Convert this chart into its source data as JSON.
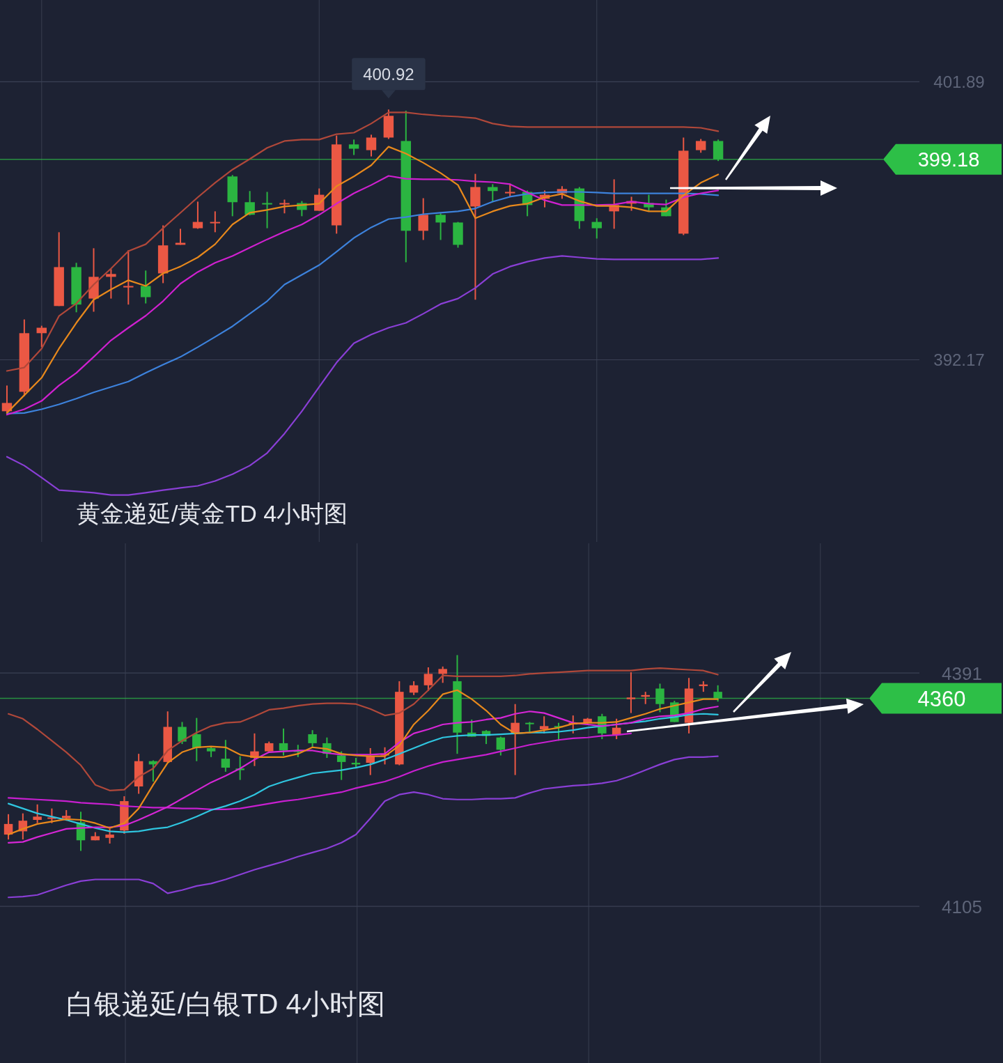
{
  "chart_data": [
    {
      "type": "candlestick",
      "title": "黄金递延/黄金TD 4小时图",
      "categories": [
        null,
        null,
        null,
        null,
        null,
        null,
        null,
        null,
        null,
        null,
        null,
        null,
        null,
        null,
        null,
        null,
        null,
        null,
        null,
        null,
        null,
        null,
        null,
        null,
        null,
        null,
        null,
        null,
        null,
        null,
        null,
        null,
        null,
        null,
        null,
        null,
        null,
        null,
        null,
        null,
        null,
        null
      ],
      "ohlc": [
        [
          390.37,
          391.27,
          390.32,
          390.66
        ],
        [
          391.05,
          393.58,
          390.9,
          393.1
        ],
        [
          393.1,
          393.36,
          392.61,
          393.29
        ],
        [
          394.05,
          396.63,
          394.05,
          395.41
        ],
        [
          395.41,
          395.56,
          393.83,
          394.1
        ],
        [
          394.31,
          396.07,
          393.85,
          395.07
        ],
        [
          395.07,
          395.34,
          394.31,
          395.17
        ],
        [
          394.7,
          396.0,
          394.1,
          394.75
        ],
        [
          394.75,
          395.29,
          394.14,
          394.36
        ],
        [
          395.19,
          396.87,
          394.85,
          396.17
        ],
        [
          396.19,
          396.75,
          396.19,
          396.26
        ],
        [
          396.77,
          397.7,
          396.75,
          396.99
        ],
        [
          396.95,
          397.36,
          396.63,
          396.99
        ],
        [
          398.58,
          398.63,
          397.19,
          397.68
        ],
        [
          397.68,
          398.07,
          397.22,
          397.24
        ],
        [
          397.65,
          398.04,
          396.77,
          397.6
        ],
        [
          397.6,
          397.77,
          397.29,
          397.65
        ],
        [
          397.65,
          397.72,
          397.19,
          397.41
        ],
        [
          397.38,
          398.16,
          397.38,
          397.94
        ],
        [
          396.87,
          400.01,
          396.58,
          399.7
        ],
        [
          399.7,
          399.87,
          399.33,
          399.55
        ],
        [
          399.5,
          400.04,
          399.28,
          399.94
        ],
        [
          399.94,
          400.92,
          399.89,
          400.7
        ],
        [
          399.82,
          400.88,
          395.58,
          396.68
        ],
        [
          396.68,
          397.82,
          396.36,
          397.24
        ],
        [
          397.24,
          397.29,
          396.36,
          396.97
        ],
        [
          396.97,
          396.99,
          396.09,
          396.19
        ],
        [
          397.53,
          398.67,
          394.27,
          398.21
        ],
        [
          398.21,
          398.31,
          397.68,
          398.07
        ],
        [
          397.99,
          398.33,
          397.87,
          398.04
        ],
        [
          398.04,
          398.09,
          397.19,
          397.58
        ],
        [
          397.8,
          398.09,
          397.5,
          397.94
        ],
        [
          397.99,
          398.24,
          397.8,
          398.14
        ],
        [
          398.16,
          398.21,
          396.75,
          397.02
        ],
        [
          396.99,
          397.12,
          396.41,
          396.77
        ],
        [
          397.36,
          398.48,
          396.75,
          397.58
        ],
        [
          397.63,
          397.87,
          397.38,
          397.72
        ],
        [
          397.65,
          397.94,
          397.38,
          397.5
        ],
        [
          397.5,
          397.77,
          397.19,
          397.19
        ],
        [
          396.58,
          399.94,
          396.53,
          399.48
        ],
        [
          399.5,
          399.89,
          399.41,
          399.82
        ],
        [
          399.82,
          399.87,
          399.12,
          399.18
        ]
      ],
      "colors": [
        "#eb5844",
        "#eb5844",
        "#eb5844",
        "#eb5844",
        "#2bb541",
        "#eb5844",
        "#eb5844",
        "#eb5844",
        "#2bb541",
        "#eb5844",
        "#eb5844",
        "#eb5844",
        "#eb5844",
        "#2bb541",
        "#2bb541",
        "#2bb541",
        "#eb5844",
        "#2bb541",
        "#eb5844",
        "#eb5844",
        "#2bb541",
        "#eb5844",
        "#eb5844",
        "#2bb541",
        "#eb5844",
        "#2bb541",
        "#2bb541",
        "#eb5844",
        "#2bb541",
        "#eb5844",
        "#2bb541",
        "#eb5844",
        "#eb5844",
        "#2bb541",
        "#2bb541",
        "#eb5844",
        "#eb5844",
        "#2bb541",
        "#2bb541",
        "#eb5844",
        "#eb5844",
        "#2bb541"
      ],
      "series": [
        {
          "type": "line",
          "color": "#b0483a",
          "values": [
            391.78,
            391.9,
            392.56,
            393.7,
            394.14,
            394.8,
            395.36,
            395.97,
            396.21,
            396.77,
            397.31,
            397.85,
            398.36,
            398.82,
            399.19,
            399.58,
            399.82,
            399.87,
            399.87,
            400.06,
            400.11,
            400.43,
            400.82,
            400.82,
            400.75,
            400.7,
            400.67,
            400.62,
            400.43,
            400.33,
            400.31,
            400.31,
            400.31,
            400.31,
            400.31,
            400.31,
            400.31,
            400.31,
            400.31,
            400.31,
            400.28,
            400.16
          ]
        },
        {
          "type": "line",
          "color": "#8a3fd6",
          "values": [
            388.78,
            388.47,
            388.05,
            387.61,
            387.57,
            387.52,
            387.44,
            387.44,
            387.52,
            387.61,
            387.69,
            387.76,
            387.93,
            388.17,
            388.47,
            388.91,
            389.59,
            390.37,
            391.22,
            392.07,
            392.75,
            393.05,
            393.29,
            393.46,
            393.78,
            394.12,
            394.31,
            394.68,
            395.17,
            395.43,
            395.6,
            395.73,
            395.8,
            395.75,
            395.7,
            395.68,
            395.68,
            395.68,
            395.68,
            395.68,
            395.68,
            395.73
          ]
        },
        {
          "type": "line",
          "color": "#3d82dc",
          "values": [
            390.29,
            390.31,
            390.44,
            390.61,
            390.81,
            391.03,
            391.22,
            391.41,
            391.71,
            392.0,
            392.27,
            392.61,
            392.97,
            393.34,
            393.78,
            394.22,
            394.8,
            395.14,
            395.48,
            395.95,
            396.43,
            396.8,
            397.09,
            397.16,
            397.26,
            397.31,
            397.36,
            397.46,
            397.7,
            397.87,
            397.97,
            398.02,
            398.04,
            398.04,
            398.02,
            397.99,
            397.99,
            397.99,
            397.99,
            397.99,
            397.97,
            397.92
          ]
        },
        {
          "type": "line",
          "color": "#d020d0",
          "values": [
            390.25,
            390.44,
            390.73,
            391.27,
            391.71,
            392.27,
            392.85,
            393.29,
            393.71,
            394.22,
            394.83,
            395.24,
            395.56,
            395.8,
            396.09,
            396.38,
            396.65,
            396.9,
            397.24,
            397.63,
            397.99,
            398.28,
            398.6,
            398.5,
            398.48,
            398.48,
            398.46,
            398.41,
            398.38,
            398.31,
            398.02,
            397.75,
            397.58,
            397.58,
            397.58,
            397.6,
            397.7,
            397.63,
            397.6,
            397.85,
            397.99,
            398.09
          ]
        },
        {
          "type": "line",
          "color": "#e8891c",
          "values": [
            390.31,
            390.93,
            391.54,
            392.56,
            393.46,
            394.27,
            394.63,
            394.95,
            394.75,
            395.19,
            395.43,
            395.75,
            396.21,
            396.9,
            397.31,
            397.41,
            397.53,
            397.58,
            397.63,
            398.24,
            398.58,
            398.97,
            399.62,
            399.38,
            399.06,
            398.7,
            398.28,
            397.12,
            397.36,
            397.55,
            397.63,
            397.85,
            397.97,
            397.72,
            397.55,
            397.55,
            397.5,
            397.36,
            397.36,
            397.92,
            398.36,
            398.65
          ]
        }
      ],
      "ylim": [
        385.8,
        404.75
      ],
      "yticks": [
        401.89,
        392.17
      ],
      "tick_labels": "y",
      "grid": true,
      "ref_lines": [
        {
          "axis": "y",
          "value": 399.18,
          "label": "399.18",
          "color": "#2dbf47"
        }
      ],
      "annotations": [
        {
          "text": "400.92",
          "y": 400.92
        }
      ]
    },
    {
      "type": "candlestick",
      "title": "白银递延/白银TD 4小时图",
      "categories": [
        null,
        null,
        null,
        null,
        null,
        null,
        null,
        null,
        null,
        null,
        null,
        null,
        null,
        null,
        null,
        null,
        null,
        null,
        null,
        null,
        null,
        null,
        null,
        null,
        null,
        null,
        null,
        null,
        null,
        null,
        null,
        null,
        null,
        null,
        null,
        null,
        null,
        null,
        null,
        null,
        null,
        null,
        null,
        null,
        null,
        null,
        null,
        null,
        null,
        null
      ],
      "ohlc": [
        [
          4193,
          4218,
          4187,
          4206
        ],
        [
          4197,
          4219,
          4187,
          4210
        ],
        [
          4211,
          4230,
          4207,
          4215
        ],
        [
          4213,
          4225,
          4207,
          4214
        ],
        [
          4213,
          4223,
          4210,
          4216
        ],
        [
          4208,
          4221,
          4173,
          4186
        ],
        [
          4186,
          4196,
          4186,
          4191
        ],
        [
          4189,
          4200,
          4182,
          4193
        ],
        [
          4198,
          4240,
          4194,
          4234
        ],
        [
          4252,
          4292,
          4243,
          4283
        ],
        [
          4283,
          4284,
          4258,
          4279
        ],
        [
          4282,
          4344,
          4281,
          4325
        ],
        [
          4325,
          4331,
          4304,
          4307
        ],
        [
          4316,
          4336,
          4283,
          4299
        ],
        [
          4299,
          4301,
          4288,
          4295
        ],
        [
          4286,
          4309,
          4270,
          4275
        ],
        [
          4274,
          4289,
          4260,
          4272
        ],
        [
          4287,
          4317,
          4277,
          4295
        ],
        [
          4295,
          4307,
          4295,
          4305
        ],
        [
          4305,
          4323,
          4290,
          4296
        ],
        [
          4296,
          4303,
          4288,
          4295
        ],
        [
          4316,
          4321,
          4300,
          4305
        ],
        [
          4305,
          4312,
          4287,
          4292
        ],
        [
          4290,
          4295,
          4260,
          4282
        ],
        [
          4281,
          4287,
          4275,
          4279
        ],
        [
          4281,
          4299,
          4266,
          4289
        ],
        [
          4290,
          4300,
          4279,
          4292
        ],
        [
          4279,
          4381,
          4278,
          4368
        ],
        [
          4367,
          4381,
          4364,
          4376
        ],
        [
          4376,
          4398,
          4369,
          4390
        ],
        [
          4390,
          4399,
          4379,
          4396
        ],
        [
          4381,
          4413,
          4292,
          4318
        ],
        [
          4318,
          4334,
          4313,
          4313
        ],
        [
          4320,
          4321,
          4304,
          4314
        ],
        [
          4312,
          4313,
          4290,
          4297
        ],
        [
          4317,
          4353,
          4266,
          4330
        ],
        [
          4330,
          4331,
          4319,
          4329
        ],
        [
          4322,
          4338,
          4317,
          4326
        ],
        [
          4326,
          4330,
          4308,
          4325
        ],
        [
          4328,
          4339,
          4317,
          4330
        ],
        [
          4330,
          4336,
          4328,
          4335
        ],
        [
          4338,
          4341,
          4310,
          4317
        ],
        [
          4315,
          4335,
          4310,
          4324
        ],
        [
          4359,
          4392,
          4342,
          4361
        ],
        [
          4362,
          4368,
          4353,
          4364
        ],
        [
          4372,
          4378,
          4343,
          4353
        ],
        [
          4355,
          4357,
          4331,
          4331
        ],
        [
          4330,
          4385,
          4317,
          4372
        ],
        [
          4375,
          4381,
          4368,
          4377
        ],
        [
          4368,
          4376,
          4356,
          4360
        ]
      ],
      "colors": [
        "#eb5844",
        "#eb5844",
        "#eb5844",
        "#eb5844",
        "#eb5844",
        "#2bb541",
        "#eb5844",
        "#eb5844",
        "#eb5844",
        "#eb5844",
        "#2bb541",
        "#eb5844",
        "#2bb541",
        "#2bb541",
        "#2bb541",
        "#2bb541",
        "#2bb541",
        "#eb5844",
        "#eb5844",
        "#2bb541",
        "#2bb541",
        "#2bb541",
        "#2bb541",
        "#2bb541",
        "#2bb541",
        "#eb5844",
        "#eb5844",
        "#eb5844",
        "#eb5844",
        "#eb5844",
        "#eb5844",
        "#2bb541",
        "#2bb541",
        "#2bb541",
        "#2bb541",
        "#eb5844",
        "#2bb541",
        "#eb5844",
        "#2bb541",
        "#eb5844",
        "#eb5844",
        "#2bb541",
        "#eb5844",
        "#eb5844",
        "#eb5844",
        "#2bb541",
        "#2bb541",
        "#eb5844",
        "#eb5844",
        "#2bb541"
      ],
      "series": [
        {
          "type": "line",
          "color": "#b0483a",
          "values": [
            4341,
            4335,
            4322,
            4308,
            4294,
            4278,
            4254,
            4247,
            4248,
            4264,
            4274,
            4296,
            4308,
            4318,
            4326,
            4330,
            4331,
            4338,
            4346,
            4348,
            4351,
            4353,
            4354,
            4354,
            4353,
            4347,
            4339,
            4342,
            4353,
            4370,
            4388,
            4387,
            4387,
            4387,
            4387,
            4388,
            4390,
            4391,
            4392,
            4393,
            4394,
            4394,
            4394,
            4394,
            4396,
            4397,
            4396,
            4395,
            4394,
            4389
          ]
        },
        {
          "type": "line",
          "color": "#8a3fd6",
          "values": [
            4116,
            4117,
            4119,
            4125,
            4131,
            4136,
            4138,
            4138,
            4138,
            4138,
            4133,
            4121,
            4125,
            4130,
            4133,
            4138,
            4144,
            4150,
            4155,
            4160,
            4166,
            4171,
            4176,
            4183,
            4193,
            4213,
            4234,
            4242,
            4245,
            4242,
            4237,
            4236,
            4236,
            4237,
            4237,
            4238,
            4244,
            4249,
            4251,
            4253,
            4254,
            4256,
            4259,
            4265,
            4272,
            4279,
            4285,
            4288,
            4288,
            4289
          ]
        },
        {
          "type": "line",
          "color": "#c81fd0",
          "values": [
            4238,
            4237,
            4236,
            4235,
            4234,
            4232,
            4231,
            4230,
            4228,
            4227,
            4226,
            4226,
            4225,
            4225,
            4224,
            4224,
            4225,
            4228,
            4231,
            4234,
            4236,
            4239,
            4242,
            4245,
            4250,
            4254,
            4258,
            4264,
            4271,
            4277,
            4282,
            4285,
            4288,
            4291,
            4295,
            4299,
            4303,
            4306,
            4309,
            4311,
            4312,
            4314,
            4315,
            4317,
            null,
            null,
            null,
            null,
            null,
            null
          ]
        },
        {
          "type": "line",
          "color": "#2fc6e0",
          "values": [
            4231,
            4225,
            4219,
            4215,
            4211,
            4206,
            4201,
            4197,
            4196,
            4197,
            4200,
            4202,
            4208,
            4215,
            4223,
            4228,
            4234,
            4242,
            4252,
            4258,
            4263,
            4268,
            4270,
            4272,
            4275,
            4279,
            4285,
            4292,
            4299,
            4306,
            4312,
            4314,
            4315,
            4315,
            4316,
            4317,
            4318,
            4318,
            4319,
            4321,
            4324,
            4326,
            4328,
            4330,
            4332,
            4335,
            4337,
            4340,
            4341,
            4340
          ]
        },
        {
          "type": "line",
          "color": "#d626d6",
          "values": [
            4183,
            4184,
            4190,
            4195,
            4200,
            4201,
            4202,
            4202,
            4204,
            4211,
            4219,
            4227,
            4237,
            4247,
            4257,
            4265,
            4274,
            4285,
            4294,
            4295,
            4296,
            4296,
            4293,
            4291,
            4291,
            4291,
            4292,
            4306,
            4317,
            4322,
            4328,
            4330,
            4331,
            4334,
            4336,
            4341,
            4344,
            4342,
            4336,
            4330,
            4328,
            4326,
            4328,
            4330,
            4335,
            4338,
            4339,
            4342,
            4347,
            4350
          ]
        },
        {
          "type": "line",
          "color": "#e8891c",
          "values": [
            4193,
            4200,
            4206,
            4209,
            4212,
            4211,
            4207,
            4201,
            4207,
            4225,
            4254,
            4281,
            4294,
            4300,
            4301,
            4300,
            4291,
            4288,
            4288,
            4288,
            4292,
            4300,
            4298,
            4292,
            4290,
            4289,
            4289,
            4302,
            4328,
            4345,
            4365,
            4370,
            4359,
            4345,
            4328,
            4317,
            4318,
            4321,
            4324,
            4329,
            4330,
            4330,
            4331,
            4336,
            4341,
            4347,
            4351,
            4355,
            4359,
            4359
          ]
        }
      ],
      "ylim": [
        3913,
        4550
      ],
      "yticks": [
        4391,
        4105
      ],
      "tick_labels": "y",
      "grid": true,
      "ref_lines": [
        {
          "axis": "y",
          "value": 4360,
          "label": "4360",
          "color": "#2dbf47"
        }
      ]
    }
  ]
}
